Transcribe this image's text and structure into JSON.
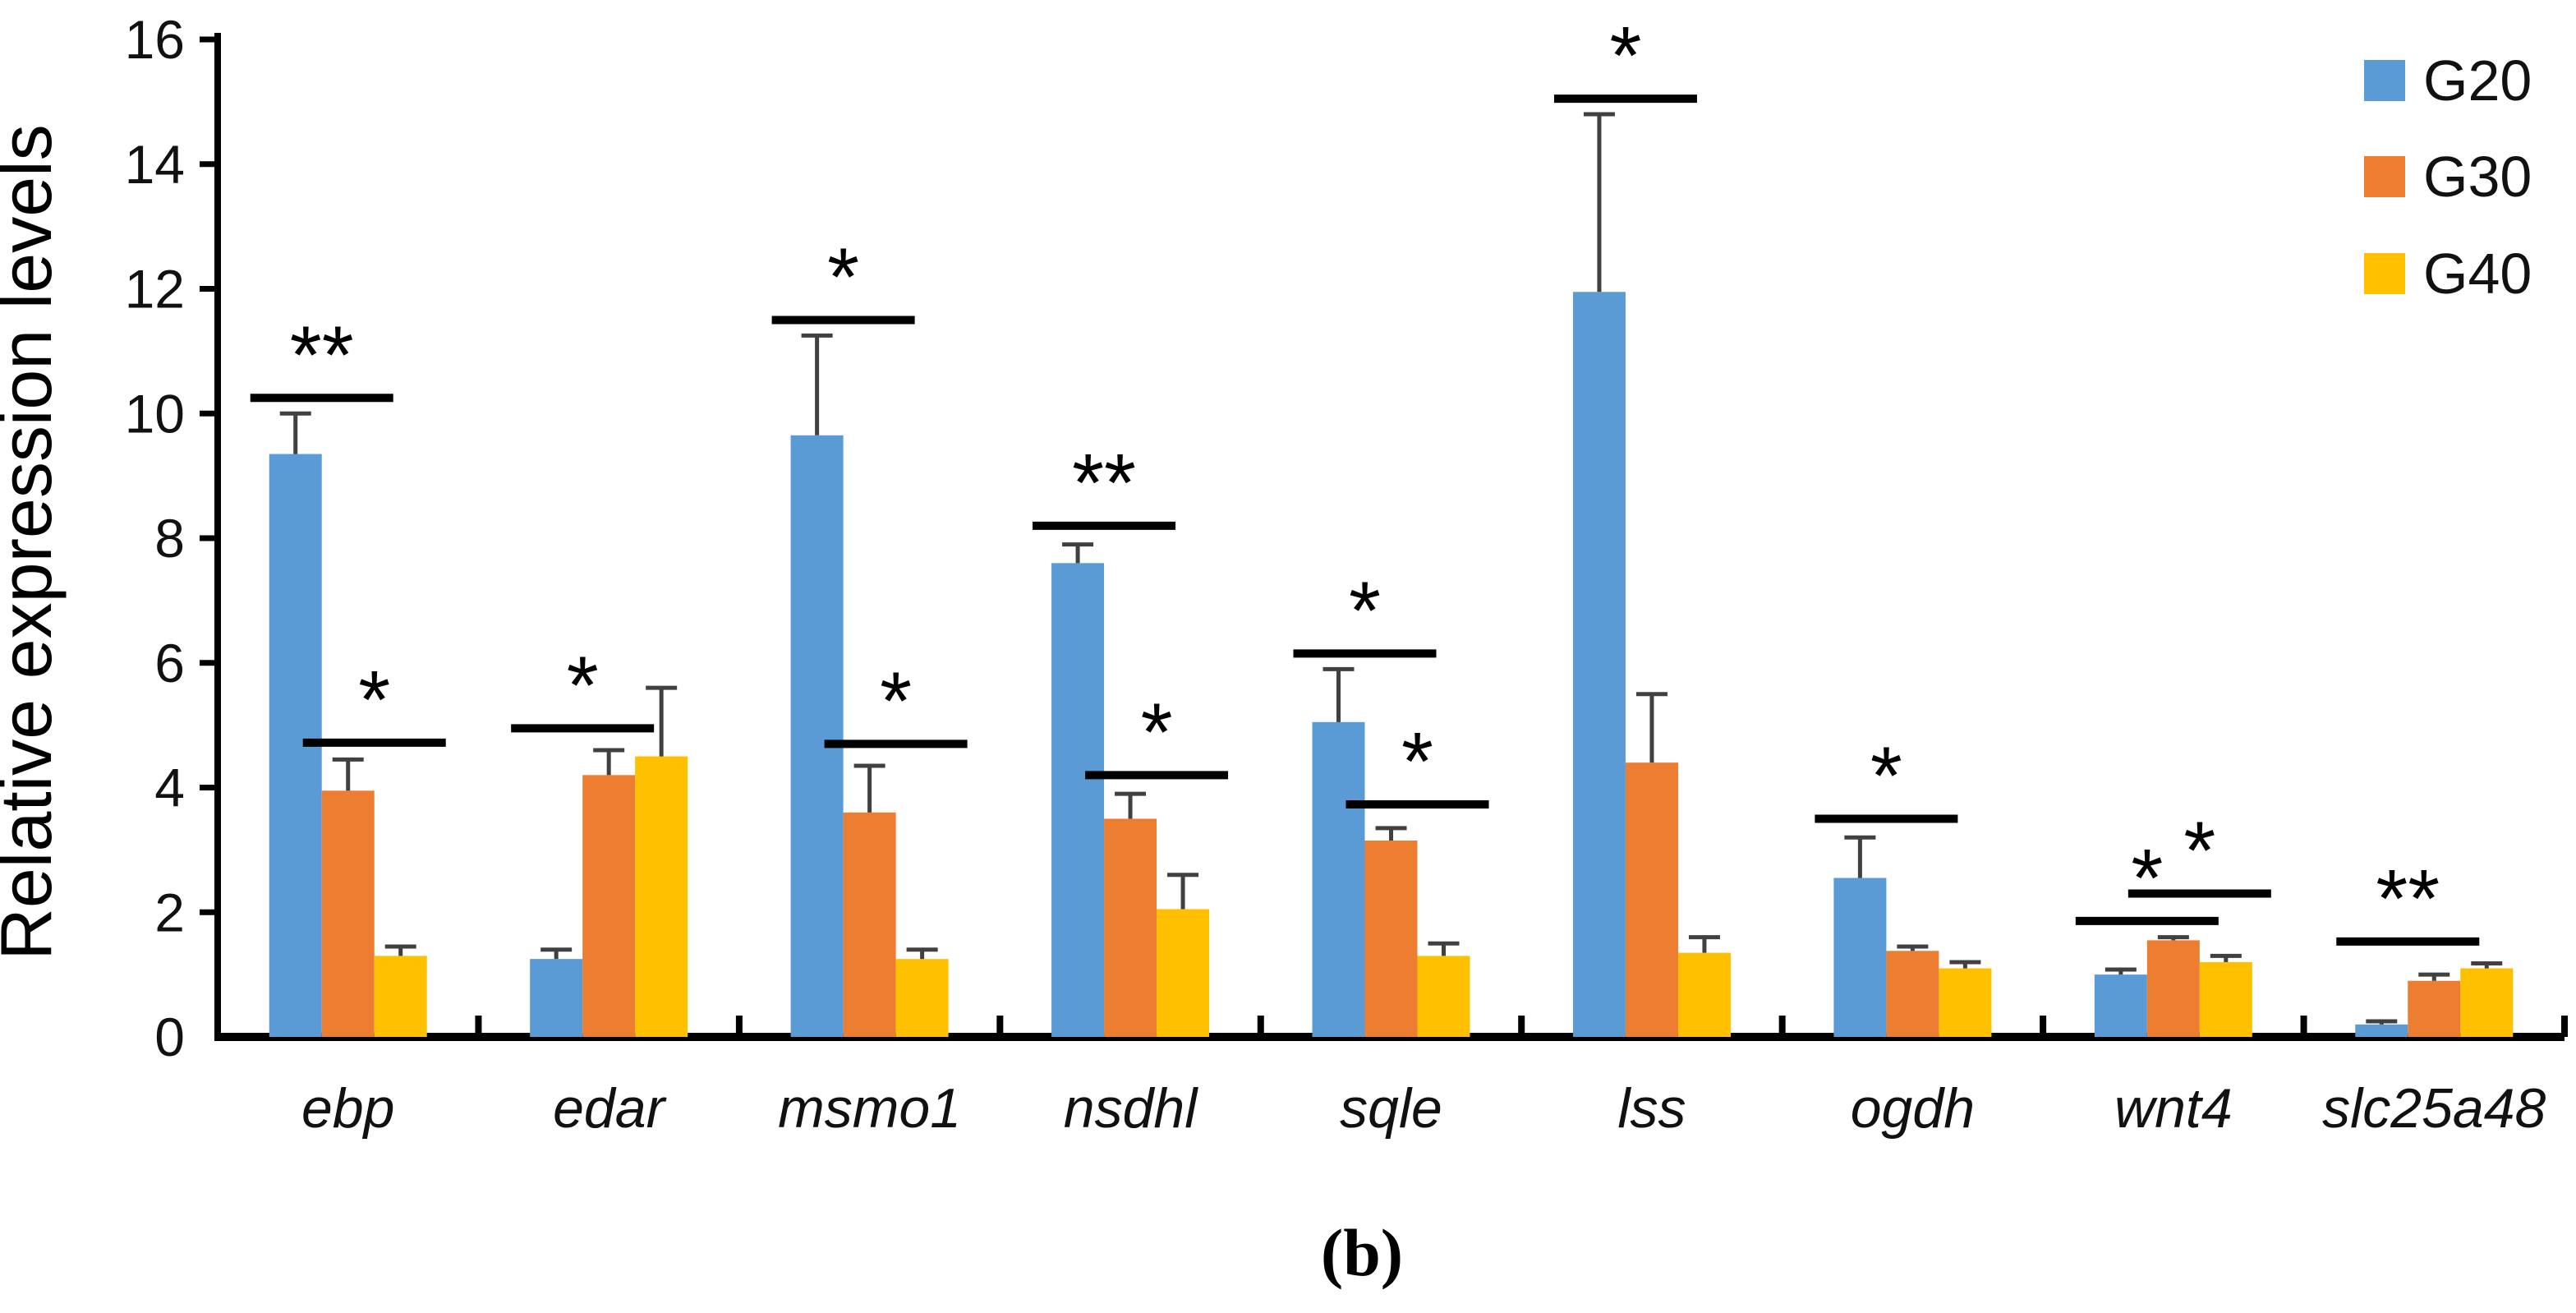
{
  "figure": {
    "caption": "(b)"
  },
  "chart_data": {
    "type": "bar",
    "title": "",
    "xlabel": "",
    "ylabel": "Relative expression levels",
    "ylim": [
      0,
      16
    ],
    "yticks": [
      0,
      2,
      4,
      6,
      8,
      10,
      12,
      14,
      16
    ],
    "grid": false,
    "legend_position": "top-right",
    "axis_color": "#000000",
    "error_bar_color": "#404040",
    "categories": [
      "ebp",
      "edar",
      "msmo1",
      "nsdhl",
      "sqle",
      "lss",
      "ogdh",
      "wnt4",
      "slc25a48"
    ],
    "series": [
      {
        "name": "G20",
        "color": "#5B9BD5",
        "values": [
          9.35,
          1.25,
          9.65,
          7.6,
          5.05,
          11.95,
          2.55,
          1.0,
          0.2
        ],
        "errors": [
          0.65,
          0.15,
          1.6,
          0.3,
          0.85,
          2.85,
          0.65,
          0.08,
          0.05
        ]
      },
      {
        "name": "G30",
        "color": "#ED7D31",
        "values": [
          3.95,
          4.2,
          3.6,
          3.5,
          3.15,
          4.4,
          1.38,
          1.55,
          0.9
        ],
        "errors": [
          0.5,
          0.4,
          0.75,
          0.4,
          0.2,
          1.1,
          0.07,
          0.05,
          0.1
        ]
      },
      {
        "name": "G40",
        "color": "#FFC000",
        "values": [
          1.3,
          4.5,
          1.25,
          2.05,
          1.3,
          1.35,
          1.1,
          1.2,
          1.1
        ],
        "errors": [
          0.15,
          1.1,
          0.15,
          0.55,
          0.2,
          0.25,
          0.1,
          0.1,
          0.08
        ]
      }
    ],
    "significance": [
      {
        "category": "ebp",
        "between": [
          "G20",
          "G30"
        ],
        "label": "**",
        "level": 10.25
      },
      {
        "category": "ebp",
        "between": [
          "G30",
          "G40"
        ],
        "label": "*",
        "level": 4.72
      },
      {
        "category": "edar",
        "between": [
          "G20",
          "G30"
        ],
        "label": "*",
        "level": 4.95
      },
      {
        "category": "msmo1",
        "between": [
          "G20",
          "G30"
        ],
        "label": "*",
        "level": 11.5
      },
      {
        "category": "msmo1",
        "between": [
          "G30",
          "G40"
        ],
        "label": "*",
        "level": 4.7
      },
      {
        "category": "nsdhl",
        "between": [
          "G20",
          "G30"
        ],
        "label": "**",
        "level": 8.2
      },
      {
        "category": "nsdhl",
        "between": [
          "G30",
          "G40"
        ],
        "label": "*",
        "level": 4.2
      },
      {
        "category": "sqle",
        "between": [
          "G20",
          "G30"
        ],
        "label": "*",
        "level": 6.15
      },
      {
        "category": "sqle",
        "between": [
          "G30",
          "G40"
        ],
        "label": "*",
        "level": 3.73
      },
      {
        "category": "lss",
        "between": [
          "G20",
          "G30"
        ],
        "label": "*",
        "level": 15.05
      },
      {
        "category": "ogdh",
        "between": [
          "G20",
          "G30"
        ],
        "label": "*",
        "level": 3.5
      },
      {
        "category": "wnt4",
        "between": [
          "G20",
          "G30"
        ],
        "label": "*",
        "level": 1.86
      },
      {
        "category": "wnt4",
        "between": [
          "G30",
          "G40"
        ],
        "label": "*",
        "level": 2.3
      },
      {
        "category": "slc25a48",
        "between": [
          "G20",
          "G30"
        ],
        "label": "**",
        "level": 1.53
      }
    ]
  }
}
